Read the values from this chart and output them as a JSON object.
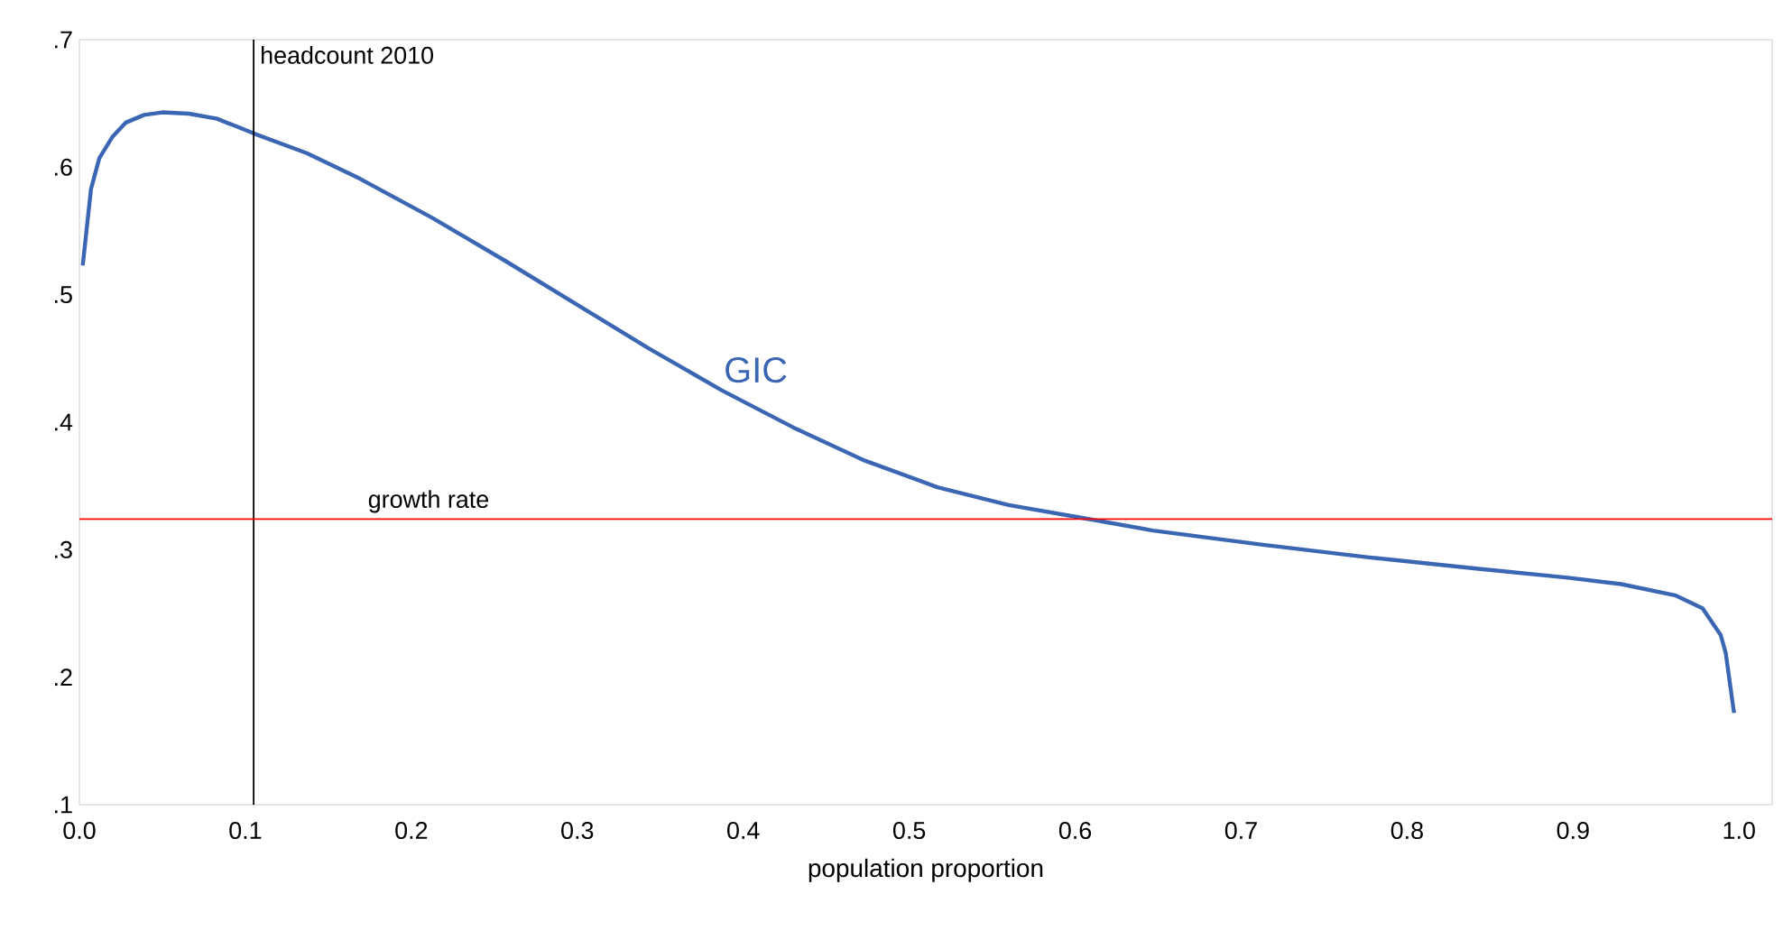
{
  "chart_data": {
    "type": "line",
    "xlabel": "population proportion",
    "xlim": [
      0,
      1.02
    ],
    "ylim": [
      0.1,
      0.7
    ],
    "xticks": [
      {
        "value": 0,
        "label": "0.0"
      },
      {
        "value": 0.1,
        "label": "0.1"
      },
      {
        "value": 0.2,
        "label": "0.2"
      },
      {
        "value": 0.3,
        "label": "0.3"
      },
      {
        "value": 0.4,
        "label": "0.4"
      },
      {
        "value": 0.5,
        "label": "0.5"
      },
      {
        "value": 0.6,
        "label": "0.6"
      },
      {
        "value": 0.7,
        "label": "0.7"
      },
      {
        "value": 0.8,
        "label": "0.8"
      },
      {
        "value": 0.9,
        "label": "0.9"
      },
      {
        "value": 1.0,
        "label": "1.0"
      }
    ],
    "yticks": [
      {
        "value": 0.1,
        "label": ".1"
      },
      {
        "value": 0.2,
        "label": ".2"
      },
      {
        "value": 0.3,
        "label": ".3"
      },
      {
        "value": 0.4,
        "label": ".4"
      },
      {
        "value": 0.5,
        "label": ".5"
      },
      {
        "value": 0.6,
        "label": ".6"
      },
      {
        "value": 0.7,
        "label": ".7"
      }
    ],
    "series": [
      {
        "name": "GIC",
        "color": "#3a66b3",
        "x": [
          0.002,
          0.007,
          0.012,
          0.02,
          0.028,
          0.039,
          0.05,
          0.066,
          0.083,
          0.106,
          0.137,
          0.169,
          0.213,
          0.256,
          0.3,
          0.343,
          0.387,
          0.43,
          0.473,
          0.517,
          0.56,
          0.604,
          0.647,
          0.712,
          0.777,
          0.843,
          0.897,
          0.929,
          0.962,
          0.978,
          0.989,
          0.992,
          0.997
        ],
        "values": [
          0.523,
          0.583,
          0.607,
          0.624,
          0.635,
          0.641,
          0.643,
          0.642,
          0.638,
          0.626,
          0.611,
          0.591,
          0.56,
          0.527,
          0.492,
          0.458,
          0.425,
          0.396,
          0.37,
          0.349,
          0.335,
          0.325,
          0.315,
          0.304,
          0.294,
          0.285,
          0.278,
          0.273,
          0.264,
          0.254,
          0.233,
          0.219,
          0.172
        ]
      }
    ],
    "ref_lines": [
      {
        "axis": "x",
        "value": 0.105,
        "label": "headcount 2010",
        "color": "#000000"
      },
      {
        "axis": "y",
        "value": 0.324,
        "label": "growth rate",
        "color": "#ff0000"
      }
    ]
  }
}
